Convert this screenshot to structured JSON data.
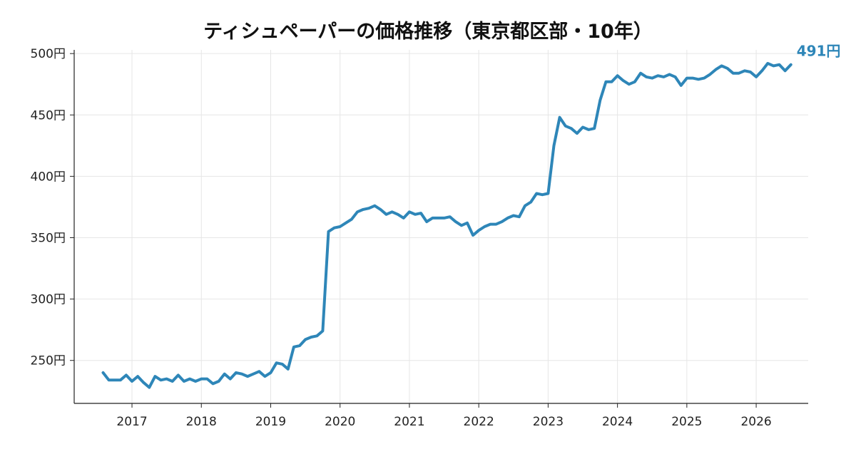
{
  "chart_data": {
    "type": "line",
    "title": "ティシュペーパーの価格推移（東京都区部・10年）",
    "xlabel": "",
    "ylabel": "",
    "x_tick_labels": [
      "2017",
      "2018",
      "2019",
      "2020",
      "2021",
      "2022",
      "2023",
      "2024",
      "2025",
      "2026"
    ],
    "y_tick_labels": [
      "250円",
      "300円",
      "350円",
      "400円",
      "450円",
      "500円"
    ],
    "y_ticks": [
      250,
      300,
      350,
      400,
      450,
      500
    ],
    "xlim": [
      "2016-03",
      "2026-10"
    ],
    "ylim": [
      215,
      503
    ],
    "grid": true,
    "color": "#2E86B8",
    "end_label": "491円",
    "series": [
      {
        "x": [
          "2016-08",
          "2016-09",
          "2016-10",
          "2016-11",
          "2016-12",
          "2017-01",
          "2017-02",
          "2017-03",
          "2017-04",
          "2017-05",
          "2017-06",
          "2017-07",
          "2017-08",
          "2017-09",
          "2017-10",
          "2017-11",
          "2017-12",
          "2018-01",
          "2018-02",
          "2018-03",
          "2018-04",
          "2018-05",
          "2018-06",
          "2018-07",
          "2018-08",
          "2018-09",
          "2018-10",
          "2018-11",
          "2018-12",
          "2019-01",
          "2019-02",
          "2019-03",
          "2019-04",
          "2019-05",
          "2019-06",
          "2019-07",
          "2019-08",
          "2019-09",
          "2019-10",
          "2019-11",
          "2019-12",
          "2020-01",
          "2020-02",
          "2020-03",
          "2020-04",
          "2020-05",
          "2020-06",
          "2020-07",
          "2020-08",
          "2020-09",
          "2020-10",
          "2020-11",
          "2020-12",
          "2021-01",
          "2021-02",
          "2021-03",
          "2021-04",
          "2021-05",
          "2021-06",
          "2021-07",
          "2021-08",
          "2021-09",
          "2021-10",
          "2021-11",
          "2021-12",
          "2022-01",
          "2022-02",
          "2022-03",
          "2022-04",
          "2022-05",
          "2022-06",
          "2022-07",
          "2022-08",
          "2022-09",
          "2022-10",
          "2022-11",
          "2022-12",
          "2023-01",
          "2023-02",
          "2023-03",
          "2023-04",
          "2023-05",
          "2023-06",
          "2023-07",
          "2023-08",
          "2023-09",
          "2023-10",
          "2023-11",
          "2023-12",
          "2024-01",
          "2024-02",
          "2024-03",
          "2024-04",
          "2024-05",
          "2024-06",
          "2024-07",
          "2024-08",
          "2024-09",
          "2024-10",
          "2024-11",
          "2024-12",
          "2025-01",
          "2025-02",
          "2025-03",
          "2025-04",
          "2025-05",
          "2025-06",
          "2025-07",
          "2025-08",
          "2025-09",
          "2025-10",
          "2025-11",
          "2025-12",
          "2026-01",
          "2026-02",
          "2026-03",
          "2026-04",
          "2026-05",
          "2026-06",
          "2026-07"
        ],
        "values": [
          240,
          234,
          234,
          234,
          238,
          233,
          237,
          232,
          228,
          237,
          234,
          235,
          233,
          238,
          233,
          235,
          233,
          235,
          235,
          231,
          233,
          239,
          235,
          240,
          239,
          237,
          239,
          241,
          237,
          240,
          248,
          247,
          243,
          261,
          262,
          267,
          269,
          270,
          274,
          355,
          358,
          359,
          362,
          365,
          371,
          373,
          374,
          376,
          373,
          369,
          371,
          369,
          366,
          371,
          369,
          370,
          363,
          366,
          366,
          366,
          367,
          363,
          360,
          362,
          352,
          356,
          359,
          361,
          361,
          363,
          366,
          368,
          367,
          376,
          379,
          386,
          385,
          386,
          425,
          448,
          441,
          439,
          435,
          440,
          438,
          439,
          462,
          477,
          477,
          482,
          478,
          475,
          477,
          484,
          481,
          480,
          482,
          481,
          483,
          481,
          474,
          480,
          480,
          479,
          480,
          483,
          487,
          490,
          488,
          484,
          484,
          486,
          485,
          481,
          486,
          492,
          490,
          491,
          486,
          491
        ]
      }
    ]
  }
}
